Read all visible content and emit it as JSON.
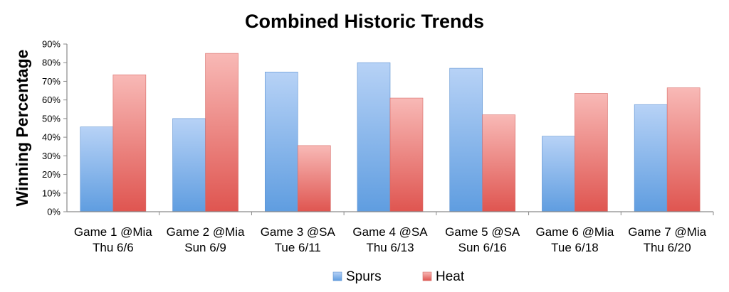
{
  "chart_data": {
    "type": "bar",
    "title": "Combined Historic Trends",
    "xlabel": "",
    "ylabel": "Winning Percentage",
    "ylim": [
      0,
      90
    ],
    "ytick_step": 10,
    "ytick_format": "percent",
    "grid": false,
    "legend_position": "bottom",
    "categories": [
      [
        "Game 1 @Mia",
        "Thu 6/6"
      ],
      [
        "Game 2 @Mia",
        "Sun 6/9"
      ],
      [
        "Game 3 @SA",
        "Tue 6/11"
      ],
      [
        "Game 4 @SA",
        "Thu 6/13"
      ],
      [
        "Game 5 @SA",
        "Sun 6/16"
      ],
      [
        "Game 6 @Mia",
        "Tue 6/18"
      ],
      [
        "Game 7 @Mia",
        "Thu 6/20"
      ]
    ],
    "series": [
      {
        "name": "Spurs",
        "values": [
          45.5,
          50,
          75,
          80,
          77,
          40.5,
          57.5
        ],
        "color_top": "#b7d2f6",
        "color_bottom": "#5f9de0",
        "stroke": "#5a8fd0"
      },
      {
        "name": "Heat",
        "values": [
          73.5,
          85,
          35.5,
          61,
          52,
          63.5,
          66.5
        ],
        "color_top": "#f8b9b6",
        "color_bottom": "#df5550",
        "stroke": "#d66a66"
      }
    ]
  }
}
